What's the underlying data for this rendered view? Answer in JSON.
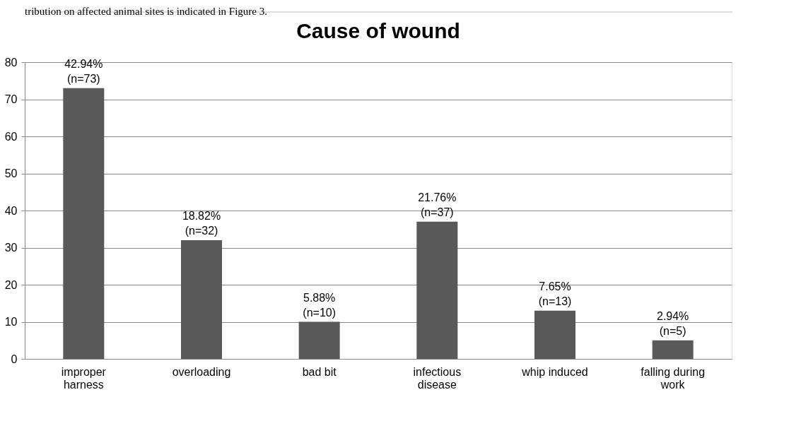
{
  "chart_data": {
    "type": "bar",
    "title": "Cause of wound",
    "annotations": [
      "tribution on affected animal sites is indicated in Figure 3."
    ],
    "categories": [
      "improper harness",
      "overloading",
      "bad bit",
      "infectious disease",
      "whip induced",
      "falling during work"
    ],
    "values": [
      73,
      32,
      10,
      37,
      13,
      5
    ],
    "color": "#595959",
    "value_labels": [
      "42.94%\n(n=73)",
      "18.82%\n(n=32)",
      "5.88%\n(n=10)",
      "21.76%\n(n=37)",
      "7.65%\n(n=13)",
      "2.94%\n(n=5)"
    ],
    "ylim": [
      0,
      80
    ],
    "yticks": [
      0,
      10,
      20,
      30,
      40,
      50,
      60,
      70,
      80
    ],
    "grid": "y"
  }
}
